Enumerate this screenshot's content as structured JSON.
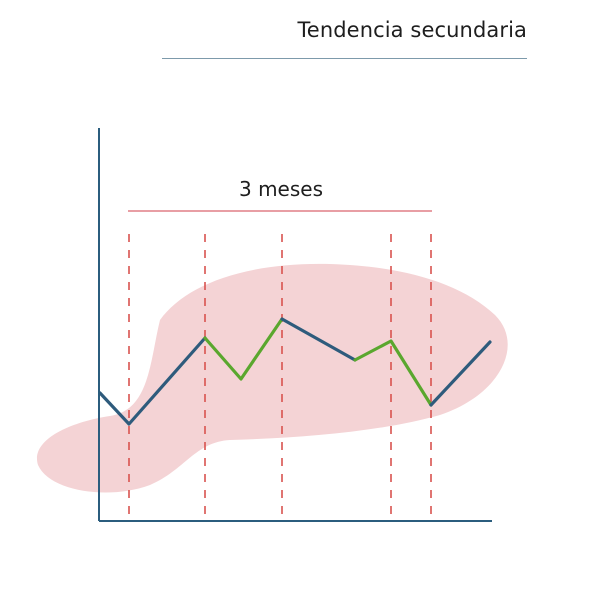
{
  "title": "Tendencia secundaria",
  "span_label": "3 meses",
  "colors": {
    "axis": "#2b5d7e",
    "down_segment": "#2e5b7c",
    "up_segment": "#5aa72e",
    "marker": "#d9534f",
    "blob": "#f4d3d5",
    "title_rule": "#7d9aab",
    "span_rule": "#e07f86"
  }
}
